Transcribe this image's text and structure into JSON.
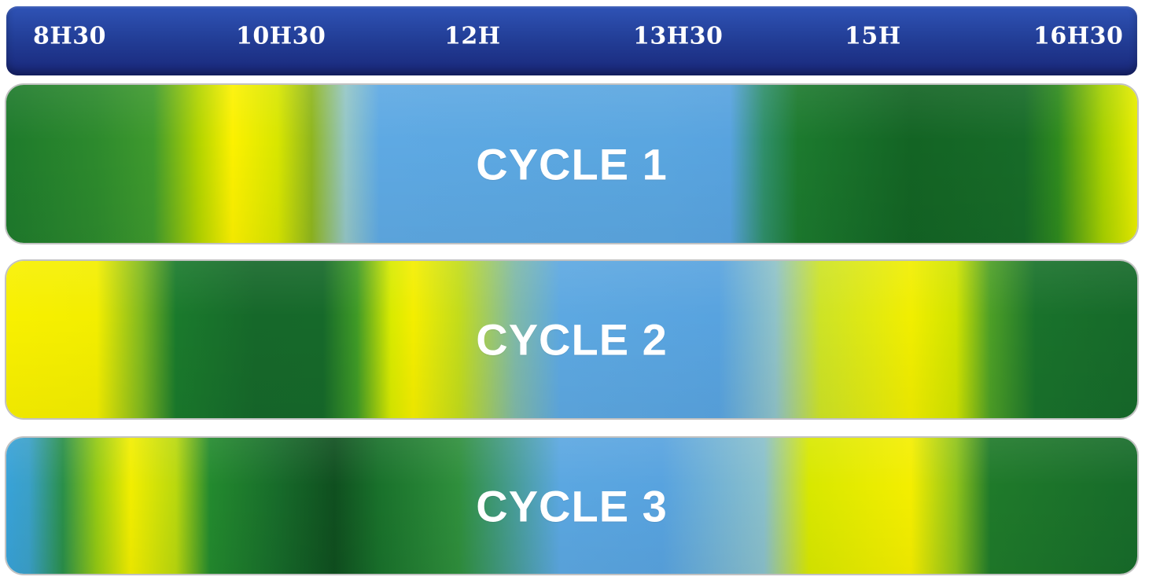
{
  "timeline": {
    "times": [
      "8H30",
      "10H30",
      "12H",
      "13H30",
      "15H",
      "16H30"
    ]
  },
  "cycles": [
    {
      "label": "CYCLE 1"
    },
    {
      "label": "CYCLE 2"
    },
    {
      "label": "CYCLE 3"
    }
  ],
  "colors": {
    "timeline_blue": "#233f98",
    "green": "#1e7a2c",
    "yellow": "#f4ee00",
    "blue": "#58a3df"
  }
}
